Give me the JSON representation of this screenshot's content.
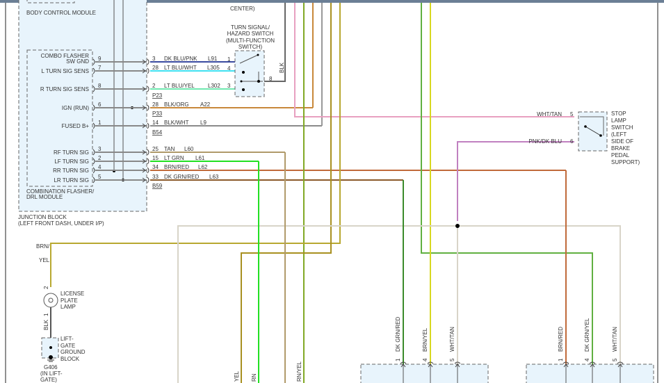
{
  "modules": {
    "body_control_module": "BODY CONTROL MODULE",
    "message_center": "CENTER)",
    "junction_block": [
      "JUNCTION BLOCK",
      "(LEFT FRONT DASH, UNDER I/P)"
    ],
    "combo_flasher": [
      "COMBINATION FLASHER/",
      "DRL MODULE"
    ],
    "turn_switch": [
      "TURN SIGNAL/",
      "HAZARD SWITCH",
      "(MULTI-FUNCTION",
      "SWITCH)"
    ],
    "stop_lamp_switch": [
      "STOP",
      "LAMP",
      "SWITCH",
      "(LEFT",
      "SIDE OF",
      "BRAKE",
      "PEDAL",
      "SUPPORT)"
    ],
    "license_plate_lamp": [
      "LICENSE",
      "PLATE",
      "LAMP"
    ],
    "ground_block": [
      "LIFT-",
      "GATE",
      "GROUND",
      "BLOCK"
    ],
    "ground": [
      "G406",
      "(IN LIFT-",
      "GATE)"
    ]
  },
  "flasher_pins": [
    {
      "label": "COMBO FLASHER",
      "label2": "SW GND",
      "pin": "9",
      "cav": "3",
      "color": "DK BLU/PNK",
      "circuit": "L91",
      "hex": "#3a4aa0"
    },
    {
      "label": "L TURN SIG SENS",
      "pin": "7",
      "cav": "28",
      "color": "LT BLU/WHT",
      "circuit": "L305",
      "hex": "#40e0f0"
    },
    {
      "label": "R TURN SIG SENS",
      "pin": "8",
      "cav": "2",
      "color": "LT BLU/YEL",
      "circuit": "L302",
      "hex": "#70e8b0"
    },
    {
      "label": "IGN (RUN)",
      "pin": "6",
      "cav": "28",
      "color": "BLK/ORG",
      "circuit": "A22",
      "hex": "#c8883a"
    },
    {
      "label": "FUSED B+",
      "pin": "1",
      "cav": "14",
      "color": "BLK/WHT",
      "circuit": "L9",
      "hex": "#8a8a8a"
    },
    {
      "label": "RF TURN SIG",
      "pin": "3",
      "cav": "25",
      "color": "TAN",
      "circuit": "L60",
      "hex": "#b09a6a"
    },
    {
      "label": "LF TURN SIG",
      "pin": "2",
      "cav": "15",
      "color": "LT GRN",
      "circuit": "L61",
      "hex": "#22e022"
    },
    {
      "label": "RR TURN SIG",
      "pin": "4",
      "cav": "34",
      "color": "BRN/RED",
      "circuit": "L62",
      "hex": "#c06a3a"
    },
    {
      "label": "LR TURN SIG",
      "pin": "5",
      "cav": "33",
      "color": "DK GRN/RED",
      "circuit": "L63",
      "hex": "#8a5a2a"
    }
  ],
  "connectors": [
    "P23",
    "P33",
    "B54",
    "B59"
  ],
  "turn_switch_pins": [
    "1",
    "4",
    "3",
    "8"
  ],
  "blk_label": "BLK",
  "stop_lamp": {
    "pin5": "5",
    "pin6": "6",
    "wire5": "WHT/TAN",
    "wire6": "PNK/DK BLU"
  },
  "lamp_wire": {
    "label": [
      "BRN/",
      "YEL"
    ],
    "pin2": "2",
    "pin1": "1",
    "gnd_wire": "BLK"
  },
  "bottom_left_pins": [
    {
      "pin": "1",
      "wire": "DK GRN/RED"
    },
    {
      "pin": "4",
      "wire": "BRN/YEL"
    },
    {
      "pin": "5",
      "wire": "WHT/TAN"
    }
  ],
  "bottom_right_pins": [
    {
      "pin": "1",
      "wire": "BRN/RED"
    },
    {
      "pin": "4",
      "wire": "DK GRN/YEL"
    },
    {
      "pin": "5",
      "wire": "WHT/TAN"
    }
  ],
  "cut_labels": [
    "YEL",
    "RN",
    "RN/YEL"
  ]
}
